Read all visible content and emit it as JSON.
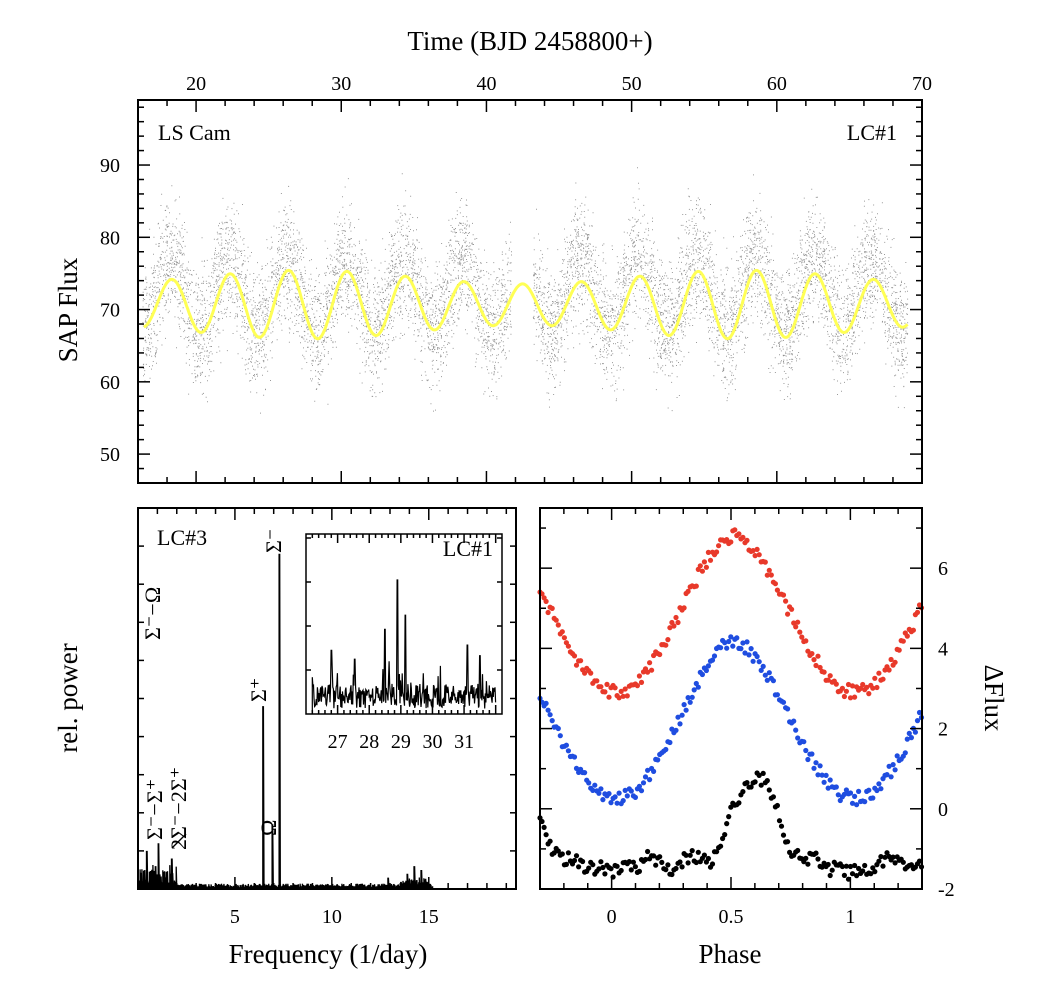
{
  "chart_data": [
    {
      "type": "scatter",
      "panel": "top",
      "xlabel": "Time (BJD 2458800+)",
      "ylabel": "SAP Flux",
      "xlim": [
        16,
        70
      ],
      "ylim": [
        46,
        99
      ],
      "xticks": [
        "20",
        "30",
        "40",
        "50",
        "60",
        "70"
      ],
      "yticks": [
        "50",
        "60",
        "70",
        "80",
        "90"
      ],
      "label_left": "LS Cam",
      "label_right": "LC#1",
      "series": [
        {
          "kind": "points",
          "color": "#000000",
          "x_range": [
            16.3,
            69.0
          ],
          "gap": [
            41.7,
            43.2
          ],
          "mean": 72,
          "scatter": 8
        },
        {
          "kind": "sinusoid-fit",
          "color": "#ffff55",
          "x": [
            16.4,
            69.0
          ],
          "mean": 70.7,
          "semi_amplitude": 3.8,
          "period_days": 4.03
        }
      ]
    },
    {
      "type": "line",
      "panel": "bottom-left",
      "xlabel": "Frequency (1/day)",
      "ylabel": "rel. power",
      "xlim": [
        0,
        19.5
      ],
      "ylim": [
        0,
        1
      ],
      "xticks": [
        "5",
        "10",
        "15"
      ],
      "label": "LC#3",
      "peaks": [
        {
          "x": 0.45,
          "y": 0.1
        },
        {
          "x": 0.9,
          "y": 0.06
        },
        {
          "x": 1.05,
          "y": 0.12
        },
        {
          "x": 1.75,
          "y": 0.08
        },
        {
          "x": 6.45,
          "y": 0.48
        },
        {
          "x": 6.95,
          "y": 0.17
        },
        {
          "x": 7.3,
          "y": 0.88
        },
        {
          "x": 12.9,
          "y": 0.03
        },
        {
          "x": 13.9,
          "y": 0.04
        },
        {
          "x": 14.25,
          "y": 0.06
        },
        {
          "x": 14.6,
          "y": 0.05
        }
      ],
      "peak_labels": [
        "Σ⁻−Ω",
        "Σ⁻",
        "Σ⁺",
        "Ω",
        "Σ⁻−Σ⁺",
        "2Σ⁻−2Σ⁺"
      ],
      "inset": {
        "label": "LC#1",
        "xlim": [
          26.0,
          32.2
        ],
        "xticks": [
          "27",
          "28",
          "29",
          "30",
          "31"
        ],
        "peaks": [
          {
            "x": 26.8,
            "y": 0.35
          },
          {
            "x": 27.55,
            "y": 0.3
          },
          {
            "x": 28.5,
            "y": 0.47
          },
          {
            "x": 28.9,
            "y": 0.75
          },
          {
            "x": 29.15,
            "y": 0.55
          },
          {
            "x": 31.1,
            "y": 0.38
          },
          {
            "x": 31.5,
            "y": 0.32
          }
        ]
      }
    },
    {
      "type": "scatter",
      "panel": "bottom-right",
      "xlabel": "Phase",
      "ylabel": "ΔFlux",
      "xlim": [
        -0.3,
        1.3
      ],
      "ylim": [
        -2,
        7.5
      ],
      "xticks": [
        "0",
        "0.5",
        "1"
      ],
      "yticks": [
        "-2",
        "0",
        "2",
        "4",
        "6"
      ],
      "series": [
        {
          "color": "#e8392a",
          "offset": 2.9,
          "profile": "eclipse-hump"
        },
        {
          "color": "#1f4de0",
          "offset": 0.25,
          "profile": "eclipse-hump"
        },
        {
          "color": "#000000",
          "offset": -1.35,
          "profile": "flat-hump"
        }
      ]
    }
  ]
}
